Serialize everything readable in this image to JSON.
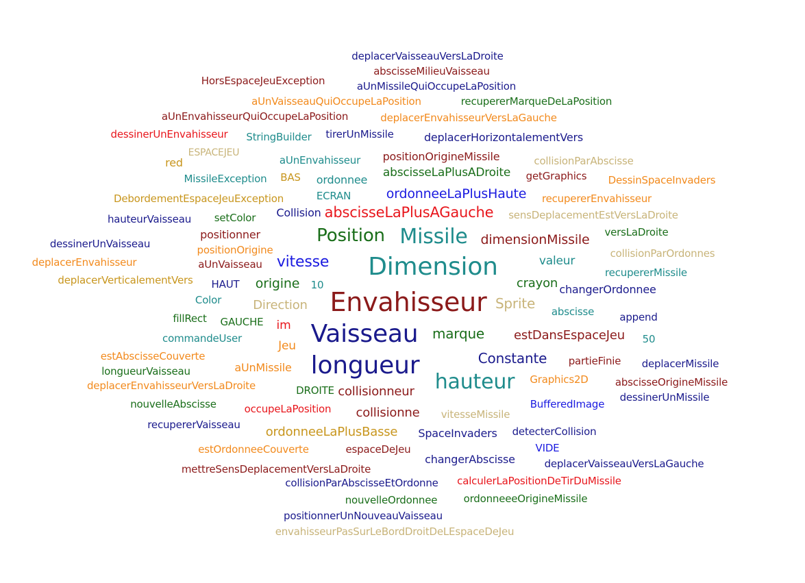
{
  "words": [
    {
      "text": "deplacerVaisseauVersLaDroite",
      "color": "#1a1a8c"
    },
    {
      "text": "abscisseMilieuVaisseau",
      "color": "#8b1a1a"
    },
    {
      "text": "HorsEspaceJeuException",
      "color": "#8b1a1a"
    },
    {
      "text": "aUnMissileQuiOccupeLaPosition",
      "color": "#1a1a8c"
    },
    {
      "text": "aUnVaisseauQuiOccupeLaPosition",
      "color": "#f28a1d"
    },
    {
      "text": "recupererMarqueDeLaPosition",
      "color": "#1a6e1a"
    },
    {
      "text": "aUnEnvahisseurQuiOccupeLaPosition",
      "color": "#8b1a1a"
    },
    {
      "text": "deplacerEnvahisseurVersLaGauche",
      "color": "#f28a1d"
    },
    {
      "text": "dessinerUnEnvahisseur",
      "color": "#e8161c"
    },
    {
      "text": "StringBuilder",
      "color": "#1f8c8c"
    },
    {
      "text": "tirerUnMissile",
      "color": "#1a1a8c"
    },
    {
      "text": "deplacerHorizontalementVers",
      "color": "#1a1a8c"
    },
    {
      "text": "ESPACEJEU",
      "color": "#c8b47a"
    },
    {
      "text": "positionOrigineMissile",
      "color": "#8b1a1a"
    },
    {
      "text": "red",
      "color": "#c8961e"
    },
    {
      "text": "aUnEnvahisseur",
      "color": "#1f8c8c"
    },
    {
      "text": "abscisseLaPlusADroite",
      "color": "#1a6e1a"
    },
    {
      "text": "collisionParAbscisse",
      "color": "#c8b47a"
    },
    {
      "text": "MissileException",
      "color": "#1f8c8c"
    },
    {
      "text": "BAS",
      "color": "#c8961e"
    },
    {
      "text": "ordonnee",
      "color": "#1f8c8c"
    },
    {
      "text": "getGraphics",
      "color": "#8b1a1a"
    },
    {
      "text": "DessinSpaceInvaders",
      "color": "#f28a1d"
    },
    {
      "text": "ordonneeLaPlusHaute",
      "color": "#1a1ae0"
    },
    {
      "text": "DebordementEspaceJeuException",
      "color": "#c8961e"
    },
    {
      "text": "ECRAN",
      "color": "#1f8c8c"
    },
    {
      "text": "recupererEnvahisseur",
      "color": "#f28a1d"
    },
    {
      "text": "hauteurVaisseau",
      "color": "#1a1a8c"
    },
    {
      "text": "setColor",
      "color": "#1a6e1a"
    },
    {
      "text": "Collision",
      "color": "#1a1a8c"
    },
    {
      "text": "abscisseLaPlusAGauche",
      "color": "#e8161c"
    },
    {
      "text": "sensDeplacementEstVersLaDroite",
      "color": "#c8b47a"
    },
    {
      "text": "positionner",
      "color": "#8b1a1a"
    },
    {
      "text": "Position",
      "color": "#1a6e1a"
    },
    {
      "text": "Missile",
      "color": "#1f8c8c"
    },
    {
      "text": "versLaDroite",
      "color": "#1a6e1a"
    },
    {
      "text": "dessinerUnVaisseau",
      "color": "#1a1a8c"
    },
    {
      "text": "dimensionMissile",
      "color": "#8b1a1a"
    },
    {
      "text": "positionOrigine",
      "color": "#f28a1d"
    },
    {
      "text": "collisionParOrdonnes",
      "color": "#c8b47a"
    },
    {
      "text": "deplacerEnvahisseur",
      "color": "#f28a1d"
    },
    {
      "text": "aUnVaisseau",
      "color": "#8b1a1a"
    },
    {
      "text": "vitesse",
      "color": "#1a1ae0"
    },
    {
      "text": "Dimension",
      "color": "#1f8c8c"
    },
    {
      "text": "valeur",
      "color": "#1f8c8c"
    },
    {
      "text": "recupererMissile",
      "color": "#1f8c8c"
    },
    {
      "text": "deplacerVerticalementVers",
      "color": "#c8961e"
    },
    {
      "text": "HAUT",
      "color": "#1a1a8c"
    },
    {
      "text": "origine",
      "color": "#1a6e1a"
    },
    {
      "text": "10",
      "color": "#1f8c8c"
    },
    {
      "text": "crayon",
      "color": "#1a6e1a"
    },
    {
      "text": "changerOrdonnee",
      "color": "#1a1a8c"
    },
    {
      "text": "Color",
      "color": "#1f8c8c"
    },
    {
      "text": "Direction",
      "color": "#c8b47a"
    },
    {
      "text": "Envahisseur",
      "color": "#8b1a1a"
    },
    {
      "text": "Sprite",
      "color": "#c8b47a"
    },
    {
      "text": "abscisse",
      "color": "#1f8c8c"
    },
    {
      "text": "fillRect",
      "color": "#1a6e1a"
    },
    {
      "text": "GAUCHE",
      "color": "#1a6e1a"
    },
    {
      "text": "im",
      "color": "#e8161c"
    },
    {
      "text": "append",
      "color": "#1a1a8c"
    },
    {
      "text": "commandeUser",
      "color": "#1f8c8c"
    },
    {
      "text": "Vaisseau",
      "color": "#1a1a8c"
    },
    {
      "text": "marque",
      "color": "#1a6e1a"
    },
    {
      "text": "estDansEspaceJeu",
      "color": "#8b1a1a"
    },
    {
      "text": "Jeu",
      "color": "#f28a1d"
    },
    {
      "text": "50",
      "color": "#1f8c8c"
    },
    {
      "text": "estAbscisseCouverte",
      "color": "#f28a1d"
    },
    {
      "text": "Constante",
      "color": "#1a1a8c"
    },
    {
      "text": "partieFinie",
      "color": "#8b1a1a"
    },
    {
      "text": "longueurVaisseau",
      "color": "#1a6e1a"
    },
    {
      "text": "aUnMissile",
      "color": "#f28a1d"
    },
    {
      "text": "longueur",
      "color": "#1a1a8c"
    },
    {
      "text": "deplacerMissile",
      "color": "#1a1a8c"
    },
    {
      "text": "deplacerEnvahisseurVersLaDroite",
      "color": "#f28a1d"
    },
    {
      "text": "hauteur",
      "color": "#1f8c8c"
    },
    {
      "text": "Graphics2D",
      "color": "#f28a1d"
    },
    {
      "text": "abscisseOrigineMissile",
      "color": "#8b1a1a"
    },
    {
      "text": "DROITE",
      "color": "#1a6e1a"
    },
    {
      "text": "collisionneur",
      "color": "#8b1a1a"
    },
    {
      "text": "dessinerUnMissile",
      "color": "#1a1a8c"
    },
    {
      "text": "nouvelleAbscisse",
      "color": "#1a6e1a"
    },
    {
      "text": "BufferedImage",
      "color": "#1a1ae0"
    },
    {
      "text": "occupeLaPosition",
      "color": "#e8161c"
    },
    {
      "text": "collisionne",
      "color": "#8b1a1a"
    },
    {
      "text": "vitesseMissile",
      "color": "#c8b47a"
    },
    {
      "text": "recupererVaisseau",
      "color": "#1a1a8c"
    },
    {
      "text": "ordonneeLaPlusBasse",
      "color": "#c8961e"
    },
    {
      "text": "SpaceInvaders",
      "color": "#1a1a8c"
    },
    {
      "text": "detecterCollision",
      "color": "#1a1a8c"
    },
    {
      "text": "estOrdonneeCouverte",
      "color": "#f28a1d"
    },
    {
      "text": "espaceDeJeu",
      "color": "#8b1a1a"
    },
    {
      "text": "VIDE",
      "color": "#1a1ae0"
    },
    {
      "text": "changerAbscisse",
      "color": "#1a1a8c"
    },
    {
      "text": "deplacerVaisseauVersLaGauche",
      "color": "#1a1a8c"
    },
    {
      "text": "mettreSensDeplacementVersLaDroite",
      "color": "#8b1a1a"
    },
    {
      "text": "collisionParAbscisseEtOrdonne",
      "color": "#1a1a8c"
    },
    {
      "text": "calculerLaPositionDeTirDuMissile",
      "color": "#e8161c"
    },
    {
      "text": "nouvelleOrdonnee",
      "color": "#1a6e1a"
    },
    {
      "text": "ordonneeeOrigineMissile",
      "color": "#1a6e1a"
    },
    {
      "text": "positionnerUnNouveauVaisseau",
      "color": "#1a1a8c"
    },
    {
      "text": "envahisseurPasSurLeBordDroitDeLEspaceDeJeu",
      "color": "#c8b47a"
    }
  ]
}
